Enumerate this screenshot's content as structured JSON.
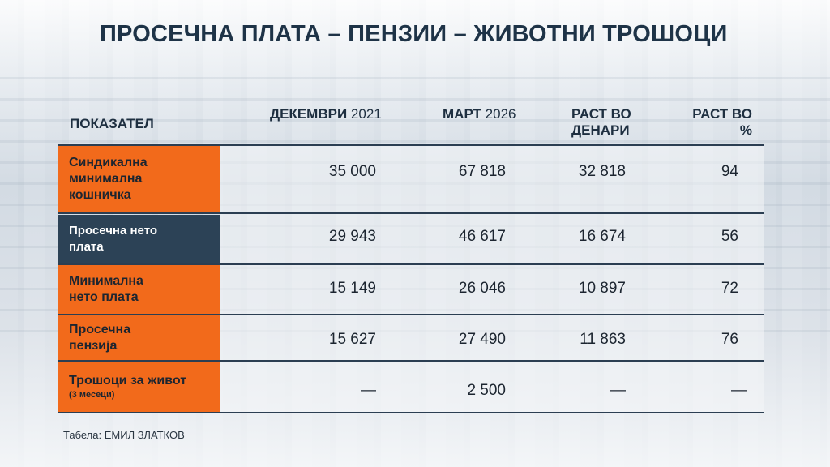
{
  "title": "ПРОСЕЧНА ПЛАТА – ПЕНЗИИ – ЖИВОТНИ ТРОШОЦИ",
  "header": {
    "indicator": "ПОКАЗАТЕЛ",
    "col1_bold": "ДЕКЕМВРИ",
    "col1_light": "2021",
    "col2_bold": "МАРТ",
    "col2_light": "2026",
    "col3_line1": "РАСТ ВО",
    "col3_line2": "ДЕНАРИ",
    "col4_line1": "РАСТ ВО",
    "col4_line2": "%"
  },
  "rows": [
    {
      "label_lines": [
        "Синдикална",
        "минимална",
        "кошничка"
      ],
      "dec2021": "35 000",
      "mar2026": "67 818",
      "growth_den": "32 818",
      "growth_pct": "94"
    },
    {
      "label_lines": [
        "Просечна нето",
        "плата"
      ],
      "dec2021": "29 943",
      "mar2026": "46 617",
      "growth_den": "16 674",
      "growth_pct": "56"
    },
    {
      "label_lines": [
        "Минимална",
        "нето плата"
      ],
      "dec2021": "15 149",
      "mar2026": "26 046",
      "growth_den": "10 897",
      "growth_pct": "72"
    },
    {
      "label_lines": [
        "Просечна",
        "пензија"
      ],
      "dec2021": "15 627",
      "mar2026": "27 490",
      "growth_den": "11 863",
      "growth_pct": "76"
    },
    {
      "label_lines": [
        "Трошоци за живот"
      ],
      "label_sub": "(3 месеци)",
      "dec2021": "—",
      "mar2026": "2 500",
      "growth_den": "—",
      "growth_pct": "—"
    }
  ],
  "credit": "Табела: ЕМИЛ ЗЛАТКОВ",
  "colors": {
    "orange": "#f26a1b",
    "dark_row": "#2c4256",
    "title": "#1e3347"
  }
}
